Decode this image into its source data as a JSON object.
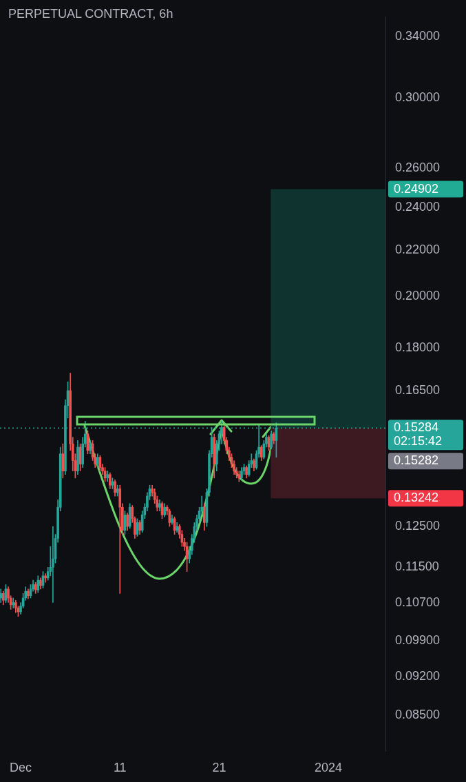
{
  "chart_data": {
    "type": "candlestick",
    "title": "PERPETUAL CONTRACT, 6h",
    "x": [
      "2023-11-29T00:00",
      "2023-11-29T06:00",
      "2023-11-29T12:00",
      "2023-11-29T18:00",
      "2023-11-30T00:00",
      "2023-11-30T06:00",
      "2023-11-30T12:00",
      "2023-11-30T18:00",
      "2023-12-01T00:00",
      "2023-12-01T06:00",
      "2023-12-01T12:00",
      "2023-12-01T18:00",
      "2023-12-02T00:00",
      "2023-12-02T06:00",
      "2023-12-02T12:00",
      "2023-12-02T18:00",
      "2023-12-03T00:00",
      "2023-12-03T06:00",
      "2023-12-03T12:00",
      "2023-12-03T18:00",
      "2023-12-04T00:00",
      "2023-12-04T06:00",
      "2023-12-04T12:00",
      "2023-12-04T18:00",
      "2023-12-05T00:00",
      "2023-12-05T06:00",
      "2023-12-05T12:00",
      "2023-12-05T18:00",
      "2023-12-06T00:00",
      "2023-12-06T06:00",
      "2023-12-06T12:00",
      "2023-12-06T18:00",
      "2023-12-07T00:00",
      "2023-12-07T06:00",
      "2023-12-07T12:00",
      "2023-12-07T18:00",
      "2023-12-08T00:00",
      "2023-12-08T06:00",
      "2023-12-08T12:00",
      "2023-12-08T18:00",
      "2023-12-09T00:00",
      "2023-12-09T06:00",
      "2023-12-09T12:00",
      "2023-12-09T18:00",
      "2023-12-10T00:00",
      "2023-12-10T06:00",
      "2023-12-10T12:00",
      "2023-12-10T18:00",
      "2023-12-11T00:00",
      "2023-12-11T06:00",
      "2023-12-11T12:00",
      "2023-12-11T18:00",
      "2023-12-12T00:00",
      "2023-12-12T06:00",
      "2023-12-12T12:00",
      "2023-12-12T18:00",
      "2023-12-13T00:00",
      "2023-12-13T06:00",
      "2023-12-13T12:00",
      "2023-12-13T18:00",
      "2023-12-14T00:00",
      "2023-12-14T06:00",
      "2023-12-14T12:00",
      "2023-12-14T18:00",
      "2023-12-15T00:00",
      "2023-12-15T06:00",
      "2023-12-15T12:00",
      "2023-12-15T18:00",
      "2023-12-16T00:00",
      "2023-12-16T06:00",
      "2023-12-16T12:00",
      "2023-12-16T18:00",
      "2023-12-17T00:00",
      "2023-12-17T06:00",
      "2023-12-17T12:00",
      "2023-12-17T18:00",
      "2023-12-18T00:00",
      "2023-12-18T06:00",
      "2023-12-18T12:00",
      "2023-12-18T18:00",
      "2023-12-19T00:00",
      "2023-12-19T06:00",
      "2023-12-19T12:00",
      "2023-12-19T18:00",
      "2023-12-20T00:00",
      "2023-12-20T06:00",
      "2023-12-20T12:00",
      "2023-12-20T18:00",
      "2023-12-21T00:00",
      "2023-12-21T06:00",
      "2023-12-21T12:00",
      "2023-12-21T18:00",
      "2023-12-22T00:00",
      "2023-12-22T06:00",
      "2023-12-22T12:00",
      "2023-12-22T18:00",
      "2023-12-23T00:00",
      "2023-12-23T06:00",
      "2023-12-23T12:00",
      "2023-12-23T18:00",
      "2023-12-24T00:00",
      "2023-12-24T06:00",
      "2023-12-24T12:00",
      "2023-12-24T18:00",
      "2023-12-25T00:00",
      "2023-12-25T06:00",
      "2023-12-25T12:00",
      "2023-12-25T18:00",
      "2023-12-26T00:00",
      "2023-12-26T06:00",
      "2023-12-26T12:00",
      "2023-12-26T18:00"
    ],
    "ohlc": [
      [
        0.108,
        0.11,
        0.107,
        0.109
      ],
      [
        0.109,
        0.1095,
        0.1065,
        0.1075
      ],
      [
        0.1075,
        0.111,
        0.107,
        0.11
      ],
      [
        0.11,
        0.1105,
        0.107,
        0.108
      ],
      [
        0.108,
        0.1085,
        0.1055,
        0.1065
      ],
      [
        0.1065,
        0.108,
        0.1058,
        0.107
      ],
      [
        0.107,
        0.1075,
        0.1048,
        0.1058
      ],
      [
        0.1058,
        0.1062,
        0.104,
        0.105
      ],
      [
        0.105,
        0.107,
        0.1045,
        0.1062
      ],
      [
        0.1062,
        0.109,
        0.1058,
        0.108
      ],
      [
        0.108,
        0.1105,
        0.1075,
        0.1095
      ],
      [
        0.1095,
        0.11,
        0.1078,
        0.1085
      ],
      [
        0.1085,
        0.111,
        0.108,
        0.11
      ],
      [
        0.11,
        0.112,
        0.1095,
        0.111
      ],
      [
        0.111,
        0.1115,
        0.109,
        0.1098
      ],
      [
        0.1098,
        0.113,
        0.1092,
        0.112
      ],
      [
        0.112,
        0.1125,
        0.11,
        0.1108
      ],
      [
        0.1108,
        0.114,
        0.1102,
        0.113
      ],
      [
        0.113,
        0.1135,
        0.1115,
        0.1125
      ],
      [
        0.1125,
        0.115,
        0.112,
        0.114
      ],
      [
        0.114,
        0.12,
        0.113,
        0.115
      ],
      [
        0.115,
        0.125,
        0.107,
        0.117
      ],
      [
        0.117,
        0.123,
        0.116,
        0.122
      ],
      [
        0.122,
        0.132,
        0.121,
        0.13
      ],
      [
        0.13,
        0.147,
        0.129,
        0.145
      ],
      [
        0.145,
        0.148,
        0.138,
        0.14
      ],
      [
        0.14,
        0.162,
        0.139,
        0.16
      ],
      [
        0.16,
        0.168,
        0.156,
        0.165
      ],
      [
        0.165,
        0.171,
        0.146,
        0.148
      ],
      [
        0.148,
        0.15,
        0.14,
        0.143
      ],
      [
        0.143,
        0.145,
        0.138,
        0.14
      ],
      [
        0.14,
        0.149,
        0.139,
        0.147
      ],
      [
        0.147,
        0.148,
        0.14,
        0.142
      ],
      [
        0.142,
        0.15,
        0.141,
        0.148
      ],
      [
        0.148,
        0.155,
        0.147,
        0.151
      ],
      [
        0.151,
        0.152,
        0.145,
        0.146
      ],
      [
        0.146,
        0.149,
        0.145,
        0.148
      ],
      [
        0.148,
        0.149,
        0.143,
        0.144
      ],
      [
        0.144,
        0.145,
        0.141,
        0.142
      ],
      [
        0.142,
        0.145,
        0.141,
        0.144
      ],
      [
        0.144,
        0.1445,
        0.14,
        0.141
      ],
      [
        0.141,
        0.142,
        0.139,
        0.14
      ],
      [
        0.14,
        0.141,
        0.137,
        0.138
      ],
      [
        0.138,
        0.14,
        0.137,
        0.139
      ],
      [
        0.139,
        0.1395,
        0.135,
        0.136
      ],
      [
        0.136,
        0.138,
        0.135,
        0.137
      ],
      [
        0.137,
        0.1375,
        0.133,
        0.134
      ],
      [
        0.134,
        0.136,
        0.133,
        0.135
      ],
      [
        0.135,
        0.136,
        0.109,
        0.13
      ],
      [
        0.13,
        0.131,
        0.123,
        0.124
      ],
      [
        0.124,
        0.129,
        0.123,
        0.128
      ],
      [
        0.128,
        0.1285,
        0.124,
        0.125
      ],
      [
        0.125,
        0.131,
        0.1245,
        0.13
      ],
      [
        0.13,
        0.1305,
        0.126,
        0.127
      ],
      [
        0.127,
        0.1275,
        0.122,
        0.123
      ],
      [
        0.123,
        0.127,
        0.1225,
        0.126
      ],
      [
        0.126,
        0.1265,
        0.123,
        0.124
      ],
      [
        0.124,
        0.129,
        0.1235,
        0.128
      ],
      [
        0.128,
        0.131,
        0.127,
        0.13
      ],
      [
        0.13,
        0.134,
        0.129,
        0.133
      ],
      [
        0.133,
        0.136,
        0.132,
        0.135
      ],
      [
        0.135,
        0.136,
        0.133,
        0.134
      ],
      [
        0.134,
        0.135,
        0.131,
        0.132
      ],
      [
        0.132,
        0.133,
        0.129,
        0.13
      ],
      [
        0.13,
        0.132,
        0.129,
        0.131
      ],
      [
        0.131,
        0.1315,
        0.127,
        0.128
      ],
      [
        0.128,
        0.131,
        0.1275,
        0.13
      ],
      [
        0.13,
        0.1305,
        0.128,
        0.129
      ],
      [
        0.129,
        0.1295,
        0.125,
        0.126
      ],
      [
        0.126,
        0.128,
        0.1255,
        0.127
      ],
      [
        0.127,
        0.1275,
        0.123,
        0.124
      ],
      [
        0.124,
        0.126,
        0.1235,
        0.125
      ],
      [
        0.125,
        0.1255,
        0.122,
        0.123
      ],
      [
        0.123,
        0.124,
        0.12,
        0.121
      ],
      [
        0.121,
        0.122,
        0.119,
        0.12
      ],
      [
        0.12,
        0.121,
        0.114,
        0.117
      ],
      [
        0.117,
        0.12,
        0.116,
        0.119
      ],
      [
        0.119,
        0.123,
        0.118,
        0.122
      ],
      [
        0.122,
        0.126,
        0.121,
        0.125
      ],
      [
        0.125,
        0.128,
        0.124,
        0.127
      ],
      [
        0.127,
        0.13,
        0.126,
        0.129
      ],
      [
        0.129,
        0.133,
        0.128,
        0.13
      ],
      [
        0.13,
        0.131,
        0.124,
        0.126
      ],
      [
        0.126,
        0.135,
        0.125,
        0.134
      ],
      [
        0.134,
        0.146,
        0.133,
        0.145
      ],
      [
        0.145,
        0.153,
        0.144,
        0.15
      ],
      [
        0.15,
        0.151,
        0.138,
        0.142
      ],
      [
        0.142,
        0.149,
        0.14,
        0.148
      ],
      [
        0.148,
        0.152,
        0.146,
        0.151
      ],
      [
        0.151,
        0.155,
        0.148,
        0.153
      ],
      [
        0.153,
        0.154,
        0.148,
        0.149
      ],
      [
        0.149,
        0.15,
        0.145,
        0.146
      ],
      [
        0.146,
        0.147,
        0.143,
        0.144
      ],
      [
        0.144,
        0.145,
        0.141,
        0.142
      ],
      [
        0.142,
        0.143,
        0.139,
        0.14
      ],
      [
        0.14,
        0.141,
        0.138,
        0.139
      ],
      [
        0.139,
        0.14,
        0.137,
        0.138
      ],
      [
        0.138,
        0.141,
        0.1375,
        0.14
      ],
      [
        0.14,
        0.142,
        0.139,
        0.141
      ],
      [
        0.141,
        0.1415,
        0.138,
        0.139
      ],
      [
        0.139,
        0.143,
        0.1385,
        0.142
      ],
      [
        0.142,
        0.145,
        0.141,
        0.143
      ],
      [
        0.143,
        0.1435,
        0.14,
        0.141
      ],
      [
        0.141,
        0.146,
        0.1405,
        0.145
      ],
      [
        0.145,
        0.154,
        0.144,
        0.147
      ],
      [
        0.147,
        0.1475,
        0.143,
        0.144
      ],
      [
        0.144,
        0.149,
        0.1435,
        0.148
      ],
      [
        0.148,
        0.151,
        0.147,
        0.15
      ],
      [
        0.15,
        0.1505,
        0.146,
        0.147
      ],
      [
        0.147,
        0.152,
        0.1465,
        0.151
      ],
      [
        0.151,
        0.1515,
        0.148,
        0.149
      ],
      [
        0.149,
        0.1545,
        0.144,
        0.15284
      ]
    ],
    "colors": [
      "#26a69a",
      "#ef5350",
      "#26a69a",
      "#ef5350",
      "#ef5350",
      "#26a69a",
      "#ef5350",
      "#ef5350",
      "#26a69a",
      "#26a69a",
      "#26a69a",
      "#ef5350",
      "#26a69a",
      "#26a69a",
      "#ef5350",
      "#26a69a",
      "#ef5350",
      "#26a69a",
      "#ef5350",
      "#26a69a",
      "#26a69a",
      "#26a69a",
      "#26a69a",
      "#26a69a",
      "#26a69a",
      "#ef5350",
      "#26a69a",
      "#26a69a",
      "#ef5350",
      "#ef5350",
      "#ef5350",
      "#26a69a",
      "#ef5350",
      "#26a69a",
      "#26a69a",
      "#ef5350",
      "#26a69a",
      "#ef5350",
      "#ef5350",
      "#26a69a",
      "#ef5350",
      "#ef5350",
      "#ef5350",
      "#26a69a",
      "#ef5350",
      "#26a69a",
      "#ef5350",
      "#26a69a",
      "#ef5350",
      "#ef5350",
      "#26a69a",
      "#ef5350",
      "#26a69a",
      "#ef5350",
      "#ef5350",
      "#26a69a",
      "#ef5350",
      "#26a69a",
      "#26a69a",
      "#26a69a",
      "#26a69a",
      "#ef5350",
      "#ef5350",
      "#ef5350",
      "#26a69a",
      "#ef5350",
      "#26a69a",
      "#ef5350",
      "#ef5350",
      "#26a69a",
      "#ef5350",
      "#26a69a",
      "#ef5350",
      "#ef5350",
      "#ef5350",
      "#ef5350",
      "#26a69a",
      "#26a69a",
      "#26a69a",
      "#26a69a",
      "#26a69a",
      "#26a69a",
      "#ef5350",
      "#26a69a",
      "#26a69a",
      "#26a69a",
      "#ef5350",
      "#26a69a",
      "#26a69a",
      "#26a69a",
      "#ef5350",
      "#ef5350",
      "#ef5350",
      "#ef5350",
      "#ef5350",
      "#ef5350",
      "#ef5350",
      "#26a69a",
      "#26a69a",
      "#ef5350",
      "#26a69a",
      "#26a69a",
      "#ef5350",
      "#26a69a",
      "#26a69a",
      "#ef5350",
      "#26a69a",
      "#26a69a",
      "#ef5350",
      "#26a69a",
      "#ef5350",
      "#26a69a"
    ],
    "xlim": [
      "2023-11-28T22:00",
      "2024-01-06T18:00"
    ],
    "xticks": [
      {
        "value": "2023-12-01",
        "label": "Dec"
      },
      {
        "value": "2023-12-11",
        "label": "11"
      },
      {
        "value": "2023-12-21",
        "label": "21"
      },
      {
        "value": "2024-01-01",
        "label": "2024"
      }
    ],
    "ylim": [
      0.079,
      0.354
    ],
    "log": "y",
    "yticks": [
      {
        "value": 0.085,
        "label": "0.08500"
      },
      {
        "value": 0.092,
        "label": "0.09200"
      },
      {
        "value": 0.099,
        "label": "0.09900"
      },
      {
        "value": 0.107,
        "label": "0.10700"
      },
      {
        "value": 0.115,
        "label": "0.11500"
      },
      {
        "value": 0.125,
        "label": "0.12500"
      },
      {
        "value": 0.165,
        "label": "0.16500"
      },
      {
        "value": 0.18,
        "label": "0.18000"
      },
      {
        "value": 0.2,
        "label": "0.20000"
      },
      {
        "value": 0.22,
        "label": "0.22000"
      },
      {
        "value": 0.24,
        "label": "0.24000"
      },
      {
        "value": 0.26,
        "label": "0.26000"
      },
      {
        "value": 0.3,
        "label": "0.30000"
      },
      {
        "value": 0.34,
        "label": "0.34000"
      }
    ],
    "legend": false,
    "ref_lines": [
      {
        "axis": "y",
        "value": 0.15284,
        "label": "0.15284",
        "color": "#26a69a",
        "line_style": "dotted"
      }
    ],
    "bands": [
      {
        "axis": "y",
        "from": 0.15284,
        "to": 0.24902,
        "label": "0.24902",
        "color": "#0f3430"
      },
      {
        "axis": "y",
        "from": 0.13242,
        "to": 0.15284,
        "label": "0.13242",
        "color": "#3d1a22"
      }
    ],
    "annotations": [
      "02:15:42",
      "0.15282"
    ]
  }
}
